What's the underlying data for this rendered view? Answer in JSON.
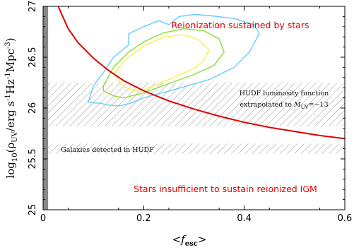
{
  "chart_data": {
    "type": "line",
    "xlim": [
      0,
      0.6
    ],
    "ylim": [
      25,
      27
    ],
    "xticks": [
      0,
      0.2,
      0.4,
      0.6
    ],
    "yticks": [
      25,
      25.5,
      26,
      26.5,
      27
    ],
    "xtick_labels": [
      "0",
      "0.2",
      "0.4",
      "0.6"
    ],
    "ytick_labels": [
      "25",
      "25.5",
      "26",
      "26.5",
      "27"
    ],
    "xlabel_parts": [
      "<",
      "f",
      "esc",
      ">"
    ],
    "ylabel_parts": [
      "log",
      "10",
      "(ρ",
      "UV",
      "/erg s",
      "-1",
      "Hz",
      "-1",
      "Mpc",
      "-3",
      ")"
    ],
    "series": [
      {
        "style": "line",
        "color": "#e00000",
        "x": [
          0.03,
          0.05,
          0.07,
          0.1,
          0.13,
          0.16,
          0.2,
          0.25,
          0.3,
          0.35,
          0.4,
          0.45,
          0.5,
          0.55,
          0.6
        ],
        "y": [
          27.0,
          26.78,
          26.64,
          26.49,
          26.37,
          26.27,
          26.17,
          26.07,
          25.99,
          25.92,
          25.86,
          25.81,
          25.77,
          25.73,
          25.7
        ]
      }
    ],
    "contours": [
      {
        "color": "#66ccff",
        "x": [
          0.09,
          0.1,
          0.12,
          0.14,
          0.17,
          0.17,
          0.2,
          0.23,
          0.25,
          0.27,
          0.3,
          0.33,
          0.38,
          0.42,
          0.43,
          0.41,
          0.38,
          0.33,
          0.26,
          0.2,
          0.17,
          0.15,
          0.13,
          0.11,
          0.1,
          0.09
        ],
        "y": [
          26.06,
          26.22,
          26.35,
          26.5,
          26.62,
          26.73,
          26.8,
          26.86,
          26.82,
          26.9,
          26.92,
          26.91,
          26.88,
          26.82,
          26.73,
          26.55,
          26.4,
          26.28,
          26.18,
          26.1,
          26.04,
          26.02,
          26.03,
          26.05,
          26.05,
          26.06
        ]
      },
      {
        "color": "#88dd33",
        "x": [
          0.12,
          0.14,
          0.17,
          0.2,
          0.24,
          0.28,
          0.32,
          0.35,
          0.36,
          0.34,
          0.3,
          0.25,
          0.2,
          0.16,
          0.14,
          0.12,
          0.12
        ],
        "y": [
          26.22,
          26.4,
          26.55,
          26.65,
          26.74,
          26.78,
          26.76,
          26.68,
          26.55,
          26.42,
          26.33,
          26.24,
          26.15,
          26.1,
          26.12,
          26.17,
          26.22
        ]
      },
      {
        "color": "#ffee44",
        "x": [
          0.14,
          0.17,
          0.2,
          0.24,
          0.28,
          0.31,
          0.33,
          0.32,
          0.3,
          0.26,
          0.22,
          0.19,
          0.16,
          0.14
        ],
        "y": [
          26.34,
          26.5,
          26.61,
          26.7,
          26.72,
          26.67,
          26.57,
          26.47,
          26.39,
          26.3,
          26.22,
          26.16,
          26.21,
          26.34
        ]
      }
    ],
    "bands": [
      {
        "y": [
          25.82,
          26.25
        ],
        "pattern": "hatched"
      },
      {
        "y": [
          25.55,
          25.65
        ],
        "pattern": "hatched"
      }
    ],
    "vband": {
      "x": [
        0,
        0.01
      ],
      "color": "#888888"
    },
    "annotations": {
      "top": "Reionization sustained by stars",
      "bottom": "Stars insufficient to sustain reionized IGM",
      "hudf_line1": "HUDF luminosity function",
      "hudf_line2_pre": "extrapolated to ",
      "hudf_line2_sym": "M",
      "hudf_line2_sub": "UV",
      "hudf_line2_post": "=−13",
      "detected": "Galaxies detected in HUDF"
    },
    "colors": {
      "red_text": "#e00000",
      "axis": "#000000"
    }
  }
}
